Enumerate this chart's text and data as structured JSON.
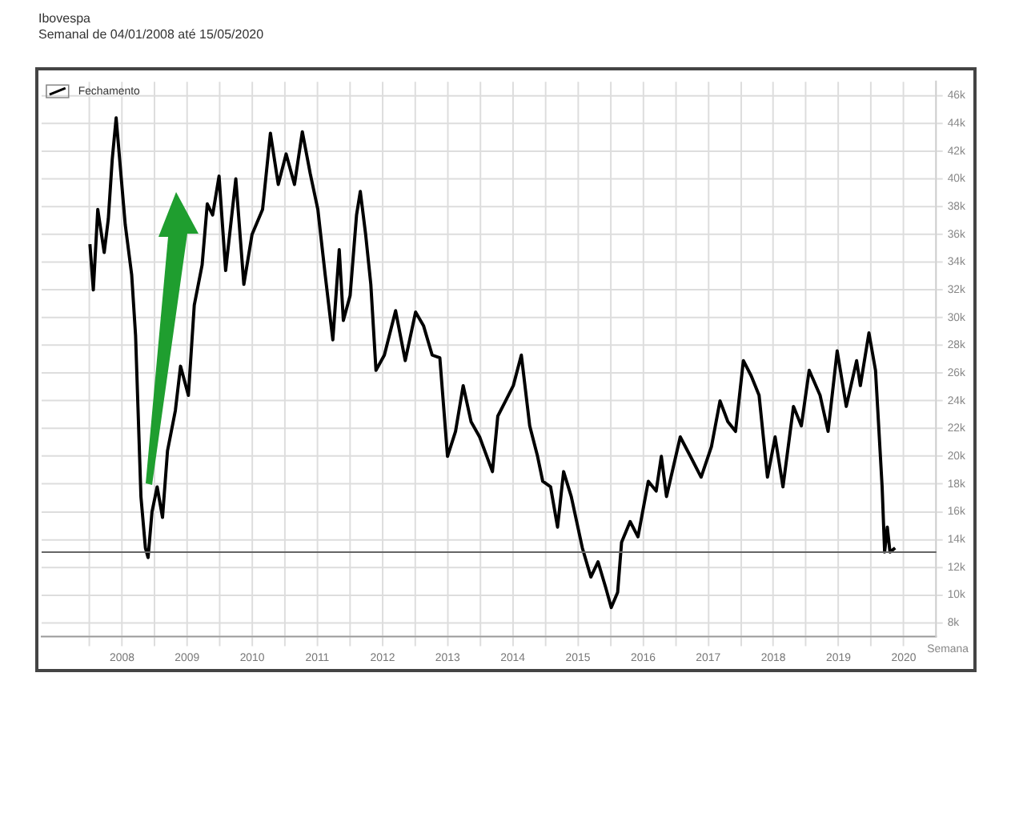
{
  "chart_data": {
    "type": "line",
    "title": "Ibovespa",
    "subtitle": "Semanal de 04/01/2008 até 15/05/2020",
    "xlabel": "Semana",
    "x": [
      "2008-01-04",
      "2008-01-23",
      "2008-02-17",
      "2008-03-24",
      "2008-04-16",
      "2008-05-08",
      "2008-05-30",
      "2008-06-28",
      "2008-07-20",
      "2008-08-25",
      "2008-09-16",
      "2008-10-16",
      "2008-11-10",
      "2008-11-25",
      "2008-12-17",
      "2009-01-15",
      "2009-02-14",
      "2009-03-14",
      "2009-04-27",
      "2009-05-26",
      "2009-07-09",
      "2009-08-11",
      "2009-09-24",
      "2009-10-23",
      "2009-11-22",
      "2009-12-28",
      "2010-02-03",
      "2010-04-01",
      "2010-05-16",
      "2010-07-01",
      "2010-08-29",
      "2010-10-12",
      "2010-11-25",
      "2011-01-08",
      "2011-02-24",
      "2011-04-09",
      "2011-05-23",
      "2011-07-05",
      "2011-08-15",
      "2011-09-27",
      "2011-11-02",
      "2011-11-25",
      "2012-01-02",
      "2012-02-07",
      "2012-02-28",
      "2012-03-29",
      "2012-04-27",
      "2012-05-26",
      "2012-07-12",
      "2012-09-13",
      "2012-11-06",
      "2013-01-03",
      "2013-02-17",
      "2013-04-06",
      "2013-05-19",
      "2013-07-01",
      "2013-08-15",
      "2013-09-27",
      "2013-11-10",
      "2013-12-28",
      "2014-03-10",
      "2014-04-09",
      "2014-05-23",
      "2014-07-05",
      "2014-08-19",
      "2014-10-05",
      "2014-11-18",
      "2014-12-17",
      "2015-01-30",
      "2015-03-10",
      "2015-04-13",
      "2015-05-26",
      "2015-07-27",
      "2015-09-13",
      "2015-10-23",
      "2015-12-06",
      "2016-01-05",
      "2016-02-10",
      "2016-03-03",
      "2016-04-20",
      "2016-06-03",
      "2016-07-31",
      "2016-09-13",
      "2016-10-12",
      "2016-11-10",
      "2017-01-26",
      "2017-03-24",
      "2017-05-23",
      "2017-07-20",
      "2017-09-06",
      "2017-10-20",
      "2017-12-02",
      "2018-01-15",
      "2018-02-28",
      "2018-04-13",
      "2018-05-30",
      "2018-07-12",
      "2018-08-25",
      "2018-10-23",
      "2018-12-06",
      "2019-01-19",
      "2019-03-21",
      "2019-05-05",
      "2019-06-25",
      "2019-08-15",
      "2019-10-12",
      "2019-11-02",
      "2019-12-20",
      "2020-01-26",
      "2020-03-03",
      "2020-03-17",
      "2020-04-01",
      "2020-04-16",
      "2020-05-15"
    ],
    "series": [
      {
        "name": "Fechamento",
        "color": "#000000",
        "values": [
          35300,
          32000,
          37800,
          34700,
          37100,
          41400,
          44400,
          40000,
          36700,
          33100,
          28700,
          17100,
          13400,
          12700,
          16000,
          17800,
          15600,
          20400,
          23300,
          26500,
          24400,
          30900,
          33800,
          38200,
          37400,
          40200,
          33400,
          40000,
          32400,
          36000,
          37800,
          43300,
          39600,
          41800,
          39600,
          43400,
          40400,
          37800,
          33100,
          28400,
          34900,
          29800,
          31600,
          37400,
          39100,
          36000,
          32400,
          26200,
          27300,
          30500,
          26900,
          30400,
          29400,
          27300,
          27100,
          20000,
          21800,
          25100,
          22500,
          21400,
          18900,
          22900,
          24000,
          25100,
          27300,
          22200,
          20000,
          18200,
          17800,
          14900,
          18900,
          17100,
          13400,
          11300,
          12400,
          10500,
          9100,
          10200,
          13800,
          15300,
          14200,
          18200,
          17500,
          20000,
          17100,
          21400,
          20000,
          18500,
          20700,
          24000,
          22500,
          21800,
          26900,
          25800,
          24400,
          18500,
          21400,
          17800,
          23600,
          22200,
          26200,
          24400,
          21800,
          27600,
          23600,
          26900,
          25100,
          28900,
          26200,
          17800,
          13100,
          14900,
          13100,
          13400
        ]
      }
    ],
    "xlim": [
      "2007-04-08",
      "2021-01-01"
    ],
    "xticks": [
      {
        "value": "2008-01-01",
        "label": null
      },
      {
        "value": "2008-07-02",
        "label": "2008"
      },
      {
        "value": "2009-01-01",
        "label": null
      },
      {
        "value": "2009-07-02",
        "label": "2009"
      },
      {
        "value": "2010-01-01",
        "label": null
      },
      {
        "value": "2010-07-02",
        "label": "2010"
      },
      {
        "value": "2011-01-01",
        "label": null
      },
      {
        "value": "2011-07-02",
        "label": "2011"
      },
      {
        "value": "2012-01-01",
        "label": null
      },
      {
        "value": "2012-07-02",
        "label": "2012"
      },
      {
        "value": "2013-01-01",
        "label": null
      },
      {
        "value": "2013-07-02",
        "label": "2013"
      },
      {
        "value": "2014-01-01",
        "label": null
      },
      {
        "value": "2014-07-02",
        "label": "2014"
      },
      {
        "value": "2015-01-01",
        "label": null
      },
      {
        "value": "2015-07-02",
        "label": "2015"
      },
      {
        "value": "2016-01-01",
        "label": null
      },
      {
        "value": "2016-07-02",
        "label": "2016"
      },
      {
        "value": "2017-01-01",
        "label": null
      },
      {
        "value": "2017-07-02",
        "label": "2017"
      },
      {
        "value": "2018-01-01",
        "label": null
      },
      {
        "value": "2018-07-02",
        "label": "2018"
      },
      {
        "value": "2019-01-01",
        "label": null
      },
      {
        "value": "2019-07-02",
        "label": "2019"
      },
      {
        "value": "2020-01-01",
        "label": null
      },
      {
        "value": "2020-07-02",
        "label": "2020"
      }
    ],
    "ylim": [
      7000,
      47000
    ],
    "yticks": [
      {
        "value": 8000,
        "label": "8k"
      },
      {
        "value": 10000,
        "label": "10k"
      },
      {
        "value": 12000,
        "label": "12k"
      },
      {
        "value": 14000,
        "label": "14k"
      },
      {
        "value": 16000,
        "label": "16k"
      },
      {
        "value": 18000,
        "label": "18k"
      },
      {
        "value": 20000,
        "label": "20k"
      },
      {
        "value": 22000,
        "label": "22k"
      },
      {
        "value": 24000,
        "label": "24k"
      },
      {
        "value": 26000,
        "label": "26k"
      },
      {
        "value": 28000,
        "label": "28k"
      },
      {
        "value": 30000,
        "label": "30k"
      },
      {
        "value": 32000,
        "label": "32k"
      },
      {
        "value": 34000,
        "label": "34k"
      },
      {
        "value": 36000,
        "label": "36k"
      },
      {
        "value": 38000,
        "label": "38k"
      },
      {
        "value": 40000,
        "label": "40k"
      },
      {
        "value": 42000,
        "label": "42k"
      },
      {
        "value": 44000,
        "label": "44k"
      },
      {
        "value": 46000,
        "label": "46k"
      }
    ],
    "ref_lines": [
      {
        "axis": "y",
        "value": 13100,
        "color": "#666666"
      }
    ],
    "grid": true,
    "legend": "top left",
    "marker": "none",
    "line_style": "solid"
  }
}
